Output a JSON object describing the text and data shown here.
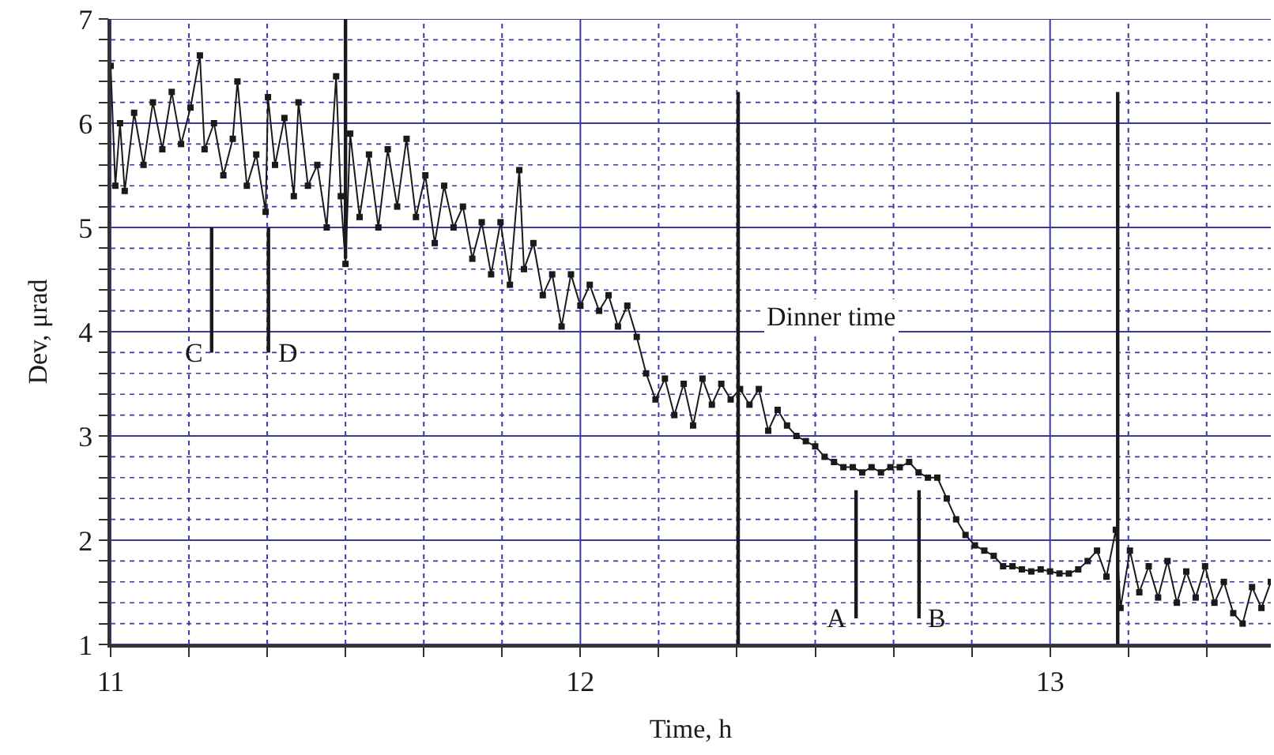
{
  "chart_data": {
    "type": "line",
    "xlabel": "Time, h",
    "ylabel": "Dev, μrad",
    "xlim": [
      11,
      13.47
    ],
    "ylim": [
      1,
      7
    ],
    "xticks": [
      11,
      {
        "value": 11.1667,
        "label": null
      },
      {
        "value": 11.3333,
        "label": null
      },
      {
        "value": 11.5,
        "label": null
      },
      {
        "value": 11.6667,
        "label": null
      },
      {
        "value": 11.8333,
        "label": null
      },
      12,
      {
        "value": 12.1667,
        "label": null
      },
      {
        "value": 12.3333,
        "label": null
      },
      {
        "value": 12.5,
        "label": null
      },
      {
        "value": 12.6667,
        "label": null
      },
      {
        "value": 12.8333,
        "label": null
      },
      13,
      {
        "value": 13.1667,
        "label": null
      },
      {
        "value": 13.3333,
        "label": null
      }
    ],
    "yticks": [
      1,
      {
        "value": 1.2,
        "label": null
      },
      {
        "value": 1.4,
        "label": null
      },
      {
        "value": 1.6,
        "label": null
      },
      {
        "value": 1.8,
        "label": null
      },
      2,
      {
        "value": 2.2,
        "label": null
      },
      {
        "value": 2.4,
        "label": null
      },
      {
        "value": 2.6,
        "label": null
      },
      {
        "value": 2.8,
        "label": null
      },
      3,
      {
        "value": 3.2,
        "label": null
      },
      {
        "value": 3.4,
        "label": null
      },
      {
        "value": 3.6,
        "label": null
      },
      {
        "value": 3.8,
        "label": null
      },
      4,
      {
        "value": 4.2,
        "label": null
      },
      {
        "value": 4.4,
        "label": null
      },
      {
        "value": 4.6,
        "label": null
      },
      {
        "value": 4.8,
        "label": null
      },
      5,
      {
        "value": 5.2,
        "label": null
      },
      {
        "value": 5.4,
        "label": null
      },
      {
        "value": 5.6,
        "label": null
      },
      {
        "value": 5.8,
        "label": null
      },
      6,
      {
        "value": 6.2,
        "label": null
      },
      {
        "value": 6.4,
        "label": null
      },
      {
        "value": 6.6,
        "label": null
      },
      {
        "value": 6.8,
        "label": null
      },
      7
    ],
    "grid": true,
    "legend": false,
    "series": [
      {
        "color": "#1a1a1a",
        "marker": "square",
        "x": [
          11.0,
          11.01,
          11.02,
          11.03,
          11.05,
          11.07,
          11.09,
          11.11,
          11.13,
          11.15,
          11.17,
          11.19,
          11.2,
          11.22,
          11.24,
          11.26,
          11.27,
          11.29,
          11.31,
          11.33,
          11.335,
          11.35,
          11.37,
          11.39,
          11.4,
          11.42,
          11.44,
          11.46,
          11.48,
          11.49,
          11.5,
          11.51,
          11.53,
          11.55,
          11.57,
          11.59,
          11.61,
          11.63,
          11.65,
          11.67,
          11.69,
          11.71,
          11.73,
          11.75,
          11.77,
          11.79,
          11.81,
          11.83,
          11.85,
          11.87,
          11.88,
          11.9,
          11.92,
          11.94,
          11.96,
          11.98,
          12.0,
          12.02,
          12.04,
          12.06,
          12.08,
          12.1,
          12.12,
          12.14,
          12.16,
          12.18,
          12.2,
          12.22,
          12.24,
          12.26,
          12.28,
          12.3,
          12.32,
          12.34,
          12.36,
          12.38,
          12.4,
          12.42,
          12.44,
          12.46,
          12.48,
          12.5,
          12.52,
          12.54,
          12.56,
          12.58,
          12.6,
          12.62,
          12.64,
          12.66,
          12.68,
          12.7,
          12.72,
          12.74,
          12.76,
          12.78,
          12.8,
          12.82,
          12.84,
          12.86,
          12.88,
          12.9,
          12.92,
          12.94,
          12.96,
          12.98,
          13.0,
          13.02,
          13.04,
          13.06,
          13.08,
          13.1,
          13.12,
          13.14,
          13.15,
          13.17,
          13.19,
          13.21,
          13.23,
          13.25,
          13.27,
          13.29,
          13.31,
          13.33,
          13.35,
          13.37,
          13.39,
          13.41,
          13.43,
          13.45,
          13.47
        ],
        "values": [
          6.55,
          5.4,
          6.0,
          5.35,
          6.1,
          5.6,
          6.2,
          5.75,
          6.3,
          5.8,
          6.15,
          6.65,
          5.75,
          6.0,
          5.5,
          5.85,
          6.4,
          5.4,
          5.7,
          5.15,
          6.25,
          5.6,
          6.05,
          5.3,
          6.2,
          5.4,
          5.6,
          5.0,
          6.45,
          5.3,
          4.65,
          5.9,
          5.1,
          5.7,
          5.0,
          5.75,
          5.2,
          5.85,
          5.1,
          5.5,
          4.85,
          5.4,
          5.0,
          5.2,
          4.7,
          5.05,
          4.55,
          5.05,
          4.45,
          5.55,
          4.6,
          4.85,
          4.35,
          4.55,
          4.05,
          4.55,
          4.25,
          4.45,
          4.2,
          4.35,
          4.05,
          4.25,
          3.95,
          3.6,
          3.35,
          3.55,
          3.2,
          3.5,
          3.1,
          3.55,
          3.3,
          3.5,
          3.35,
          3.45,
          3.3,
          3.45,
          3.05,
          3.25,
          3.1,
          3.0,
          2.95,
          2.9,
          2.8,
          2.75,
          2.7,
          2.7,
          2.65,
          2.7,
          2.65,
          2.7,
          2.7,
          2.75,
          2.65,
          2.6,
          2.6,
          2.4,
          2.2,
          2.05,
          1.95,
          1.9,
          1.85,
          1.75,
          1.75,
          1.72,
          1.7,
          1.72,
          1.7,
          1.68,
          1.68,
          1.72,
          1.8,
          1.9,
          1.65,
          2.1,
          1.35,
          1.9,
          1.5,
          1.75,
          1.45,
          1.8,
          1.4,
          1.7,
          1.45,
          1.75,
          1.4,
          1.6,
          1.3,
          1.2,
          1.55,
          1.35,
          1.6
        ]
      },
      {
        "color": "#1a1a1a",
        "marker": "none",
        "x": [
          11.5,
          11.5
        ],
        "values": [
          4.7,
          7.0
        ]
      },
      {
        "color": "#1a1a1a",
        "marker": "none",
        "x": [
          12.336,
          12.336
        ],
        "values": [
          1.0,
          6.3
        ]
      },
      {
        "color": "#1a1a1a",
        "marker": "none",
        "x": [
          13.144,
          13.144
        ],
        "values": [
          1.0,
          6.3
        ]
      },
      {
        "name": "C",
        "color": "#1a1a1a",
        "marker": "none",
        "x": [
          11.215,
          11.215
        ],
        "values": [
          3.8,
          5.0
        ]
      },
      {
        "name": "D",
        "color": "#1a1a1a",
        "marker": "none",
        "x": [
          11.336,
          11.336
        ],
        "values": [
          3.8,
          5.0
        ]
      },
      {
        "name": "A",
        "color": "#1a1a1a",
        "marker": "none",
        "x": [
          12.587,
          12.587
        ],
        "values": [
          1.25,
          2.48
        ]
      },
      {
        "name": "B",
        "color": "#1a1a1a",
        "marker": "none",
        "x": [
          12.721,
          12.721
        ],
        "values": [
          1.25,
          2.48
        ]
      }
    ],
    "annotations": [
      "Dinner time"
    ]
  }
}
